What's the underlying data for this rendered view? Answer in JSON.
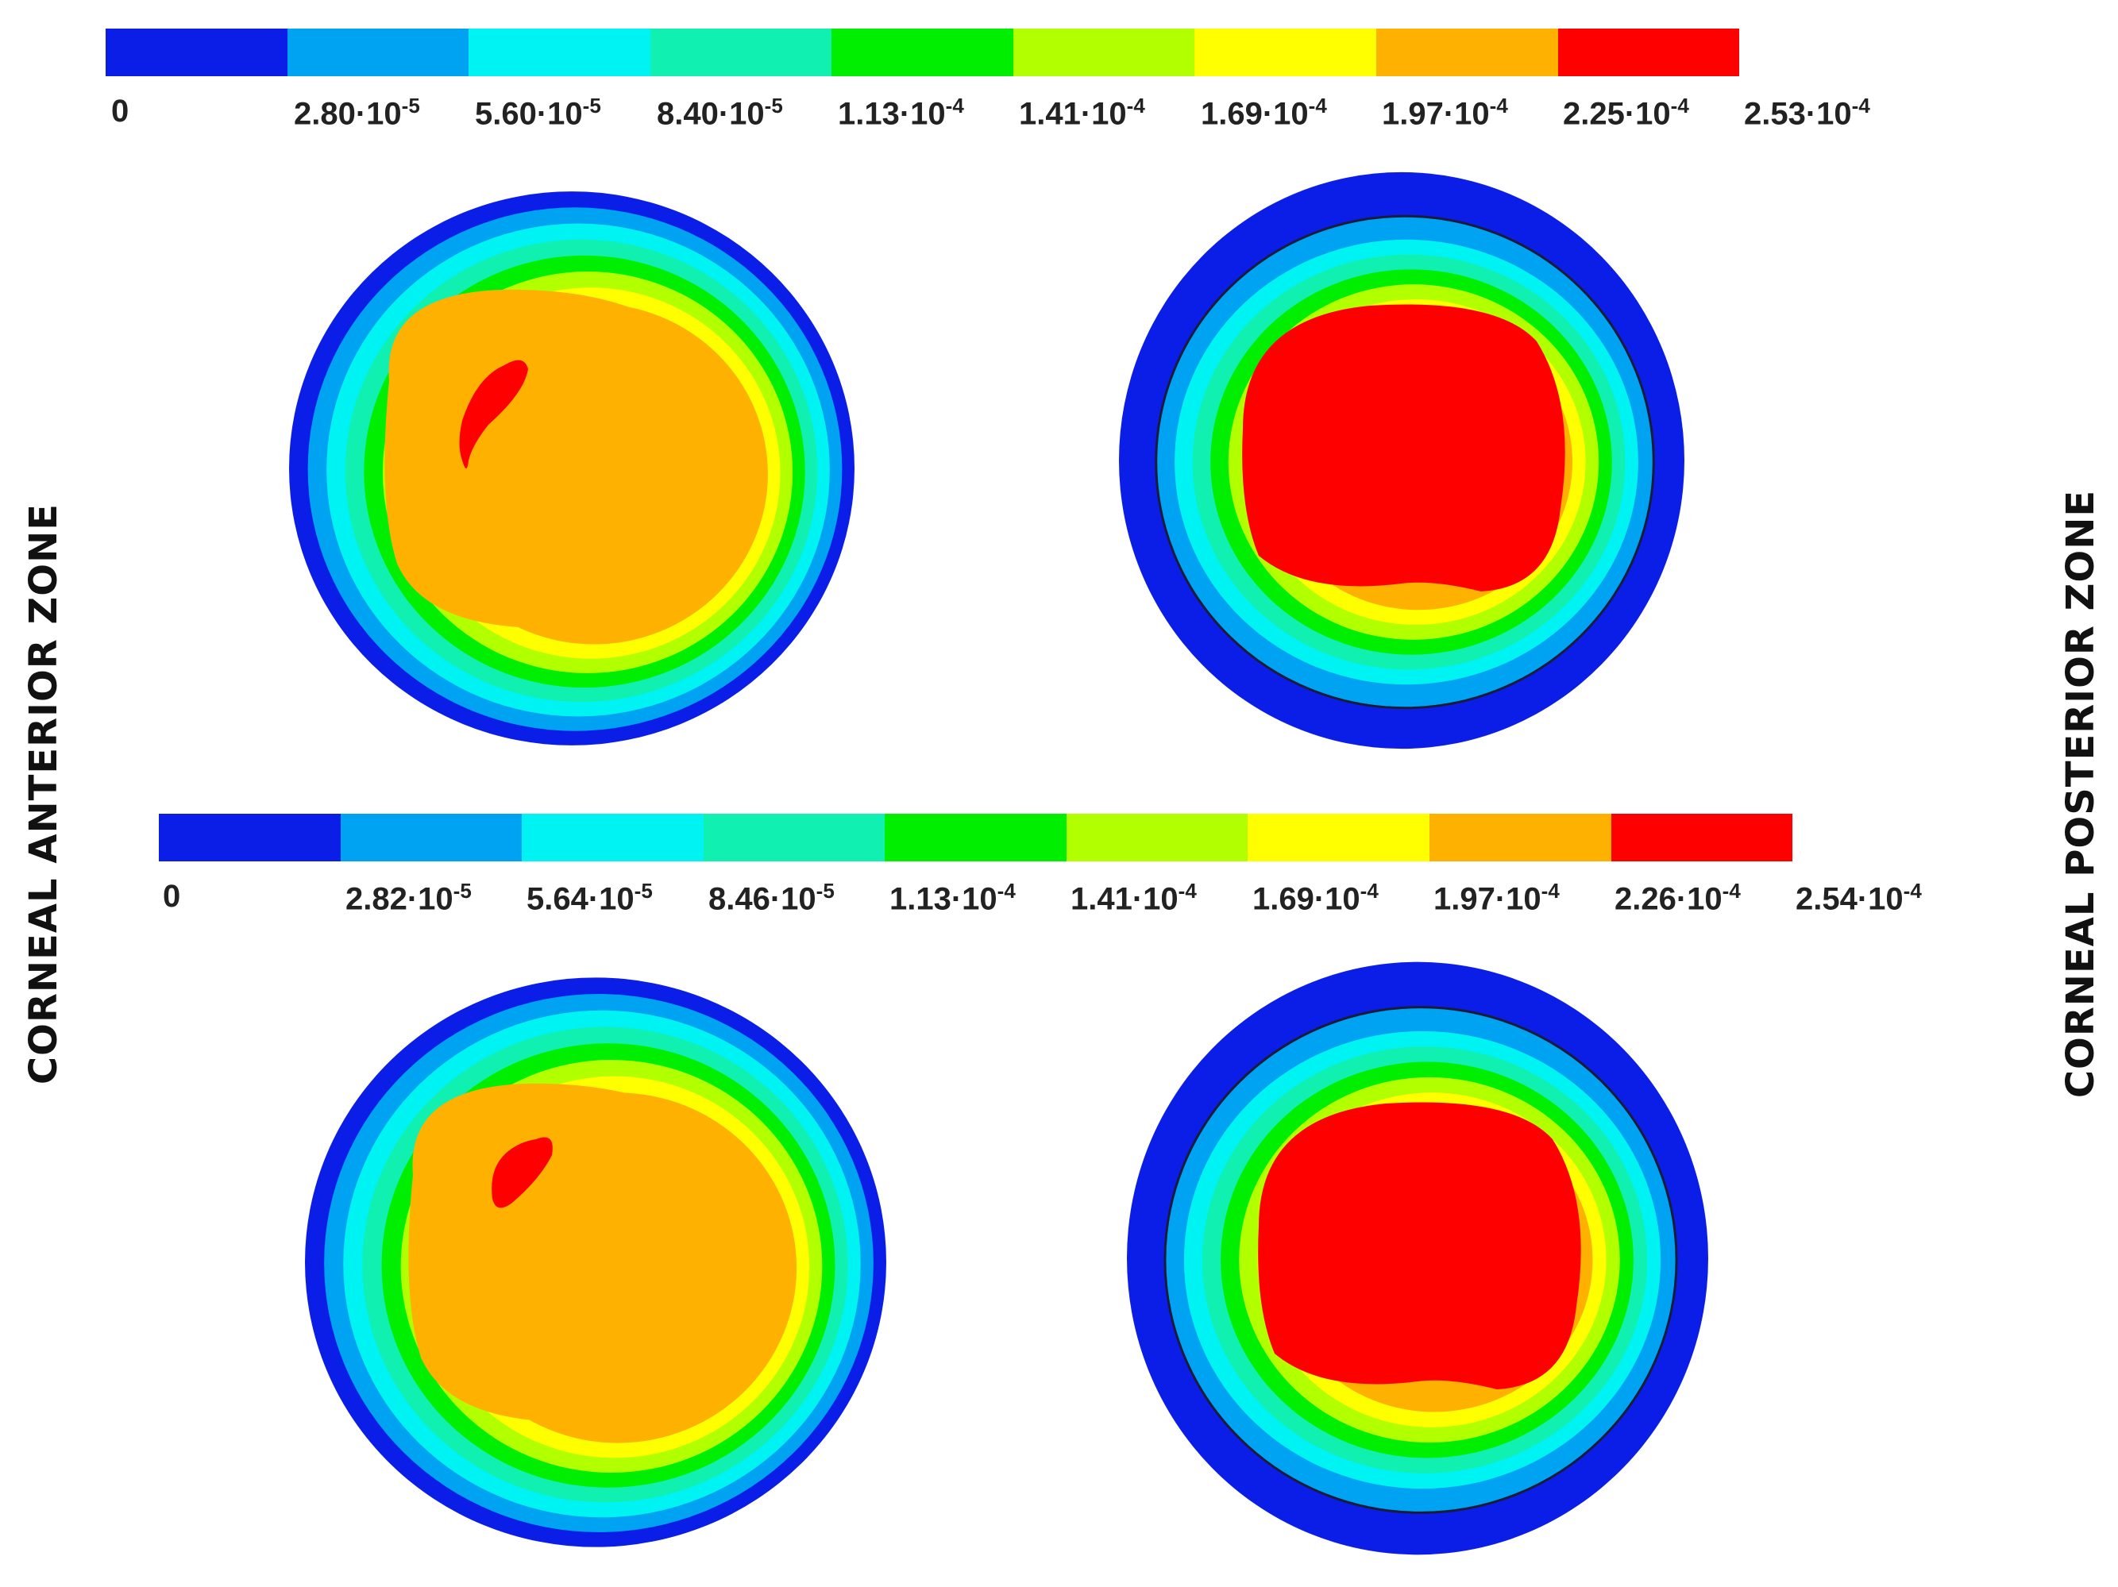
{
  "colormap": [
    "#0b1ee8",
    "#00a2f2",
    "#00f3f3",
    "#10f0b0",
    "#00ee00",
    "#b2ff00",
    "#ffff00",
    "#ffb100",
    "#ff0000"
  ],
  "legend_top": {
    "ticks": [
      {
        "base": "0",
        "exp": ""
      },
      {
        "base": "2.80·10",
        "exp": "-5"
      },
      {
        "base": "5.60·10",
        "exp": "-5"
      },
      {
        "base": "8.40·10",
        "exp": "-5"
      },
      {
        "base": "1.13·10",
        "exp": "-4"
      },
      {
        "base": "1.41·10",
        "exp": "-4"
      },
      {
        "base": "1.69·10",
        "exp": "-4"
      },
      {
        "base": "1.97·10",
        "exp": "-4"
      },
      {
        "base": "2.25·10",
        "exp": "-4"
      },
      {
        "base": "2.53·10",
        "exp": "-4"
      }
    ]
  },
  "legend_bottom": {
    "ticks": [
      {
        "base": "0",
        "exp": ""
      },
      {
        "base": "2.82·10",
        "exp": "-5"
      },
      {
        "base": "5.64·10",
        "exp": "-5"
      },
      {
        "base": "8.46·10",
        "exp": "-5"
      },
      {
        "base": "1.13·10",
        "exp": "-4"
      },
      {
        "base": "1.41·10",
        "exp": "-4"
      },
      {
        "base": "1.69·10",
        "exp": "-4"
      },
      {
        "base": "1.97·10",
        "exp": "-4"
      },
      {
        "base": "2.26·10",
        "exp": "-4"
      },
      {
        "base": "2.54·10",
        "exp": "-4"
      }
    ]
  },
  "labels": {
    "left": "CORNEAL ANTERIOR ZONE",
    "right": "CORNEAL  POSTERIOR  ZONE"
  }
}
